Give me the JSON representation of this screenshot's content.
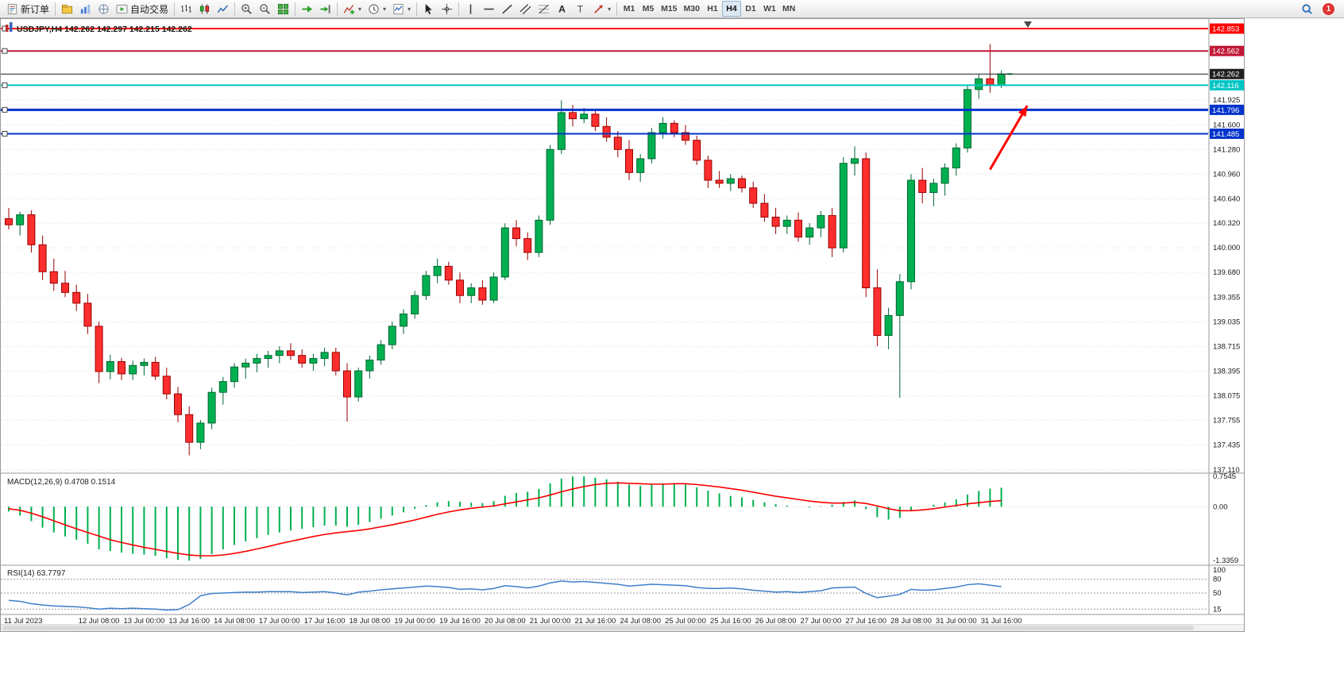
{
  "toolbar": {
    "groups": [
      {
        "items": [
          {
            "icon": "new-order",
            "label": "新订单",
            "name": "new-order-button"
          }
        ]
      },
      {
        "items": [
          {
            "icon": "profiles",
            "name": "profiles-button"
          },
          {
            "icon": "market-watch",
            "name": "market-watch-button"
          },
          {
            "icon": "navigator",
            "name": "navigator-button"
          },
          {
            "icon": "autotrading",
            "label": "自动交易",
            "name": "autotrading-button"
          }
        ]
      },
      {
        "items": [
          {
            "icon": "bar-chart",
            "name": "bar-chart-button"
          },
          {
            "icon": "candle-chart",
            "name": "candlestick-chart-button"
          },
          {
            "icon": "line-chart",
            "name": "line-chart-button"
          }
        ]
      },
      {
        "items": [
          {
            "icon": "zoom-in",
            "name": "zoom-in-button"
          },
          {
            "icon": "zoom-out",
            "name": "zoom-out-button"
          },
          {
            "icon": "tile-windows",
            "name": "tile-windows-button"
          }
        ]
      },
      {
        "items": [
          {
            "icon": "auto-scroll",
            "name": "auto-scroll-button"
          },
          {
            "icon": "chart-shift",
            "name": "chart-shift-button"
          }
        ]
      },
      {
        "items": [
          {
            "icon": "indicators",
            "caret": true,
            "name": "indicators-button"
          },
          {
            "icon": "periods",
            "caret": true,
            "name": "periods-button"
          },
          {
            "icon": "templates",
            "caret": true,
            "name": "templates-button"
          }
        ]
      },
      {
        "items": [
          {
            "icon": "cursor",
            "name": "cursor-button"
          },
          {
            "icon": "crosshair",
            "name": "crosshair-button"
          }
        ]
      },
      {
        "items": [
          {
            "icon": "vline",
            "name": "vertical-line-button"
          },
          {
            "icon": "hline",
            "name": "horizontal-line-button"
          },
          {
            "icon": "trendline",
            "name": "trendline-button"
          },
          {
            "icon": "channel",
            "name": "equidistant-channel-button"
          },
          {
            "icon": "fibo",
            "name": "fibonacci-button"
          },
          {
            "icon": "text",
            "name": "text-button"
          },
          {
            "icon": "label",
            "name": "text-label-button"
          },
          {
            "icon": "arrows",
            "caret": true,
            "name": "arrows-button"
          }
        ]
      }
    ],
    "timeframes": [
      "M1",
      "M5",
      "M15",
      "M30",
      "H1",
      "H4",
      "D1",
      "W1",
      "MN"
    ],
    "active_timeframe": "H4",
    "notification_count": "1"
  },
  "chart": {
    "title": "USDJPY,H4 142.262 142.297 142.215 142.262"
  },
  "chart_data": {
    "type": "candlestick",
    "symbol": "USDJPY",
    "timeframe": "H4",
    "ohlc_current": {
      "open": "142.262",
      "high": "142.297",
      "low": "142.215",
      "close": "142.262"
    },
    "price_axis": {
      "view_max": 142.874,
      "view_min": 137.089,
      "ticks": [
        141.925,
        141.6,
        141.28,
        140.96,
        140.64,
        140.32,
        140.0,
        139.68,
        139.355,
        139.035,
        138.715,
        138.395,
        138.075,
        137.755,
        137.435,
        137.11
      ],
      "grid_extra": [
        142.245,
        142.565,
        142.885
      ]
    },
    "levels": [
      {
        "price": 142.853,
        "label": "142.853",
        "color": "#FF0000",
        "width": 2,
        "kind": "object"
      },
      {
        "price": 142.562,
        "label": "142.562",
        "color": "#C21735",
        "width": 2,
        "kind": "object"
      },
      {
        "price": 142.262,
        "label": "142.262",
        "color": "#1F1F1F",
        "width": 1,
        "kind": "bid"
      },
      {
        "price": 142.116,
        "label": "142.116",
        "color": "#00C5C5",
        "width": 2,
        "kind": "object"
      },
      {
        "price": 141.796,
        "label": "141.796",
        "color": "#0033CC",
        "width": 3,
        "kind": "object"
      },
      {
        "price": 141.485,
        "label": "141.485",
        "color": "#0033CC",
        "width": 2,
        "kind": "object"
      }
    ],
    "candles": [
      [
        140.38,
        140.52,
        140.24,
        140.3
      ],
      [
        140.3,
        140.47,
        140.16,
        140.43
      ],
      [
        140.43,
        140.49,
        139.94,
        140.04
      ],
      [
        140.04,
        140.16,
        139.58,
        139.69
      ],
      [
        139.69,
        139.86,
        139.44,
        139.54
      ],
      [
        139.54,
        139.7,
        139.36,
        139.42
      ],
      [
        139.42,
        139.52,
        139.18,
        139.28
      ],
      [
        139.28,
        139.4,
        138.88,
        138.98
      ],
      [
        138.98,
        139.04,
        138.24,
        138.39
      ],
      [
        138.39,
        138.61,
        138.29,
        138.52
      ],
      [
        138.52,
        138.57,
        138.28,
        138.36
      ],
      [
        138.36,
        138.53,
        138.28,
        138.47
      ],
      [
        138.47,
        138.56,
        138.34,
        138.51
      ],
      [
        138.51,
        138.58,
        138.28,
        138.33
      ],
      [
        138.33,
        138.44,
        138.03,
        138.1
      ],
      [
        138.1,
        138.19,
        137.73,
        137.83
      ],
      [
        137.83,
        137.94,
        137.3,
        137.47
      ],
      [
        137.47,
        137.76,
        137.38,
        137.72
      ],
      [
        137.72,
        138.18,
        137.64,
        138.12
      ],
      [
        138.12,
        138.32,
        137.96,
        138.26
      ],
      [
        138.26,
        138.5,
        138.18,
        138.45
      ],
      [
        138.45,
        138.56,
        138.3,
        138.5
      ],
      [
        138.5,
        138.62,
        138.38,
        138.56
      ],
      [
        138.56,
        138.66,
        138.44,
        138.6
      ],
      [
        138.6,
        138.72,
        138.5,
        138.66
      ],
      [
        138.66,
        138.76,
        138.54,
        138.6
      ],
      [
        138.6,
        138.68,
        138.44,
        138.5
      ],
      [
        138.5,
        138.62,
        138.4,
        138.56
      ],
      [
        138.56,
        138.7,
        138.46,
        138.64
      ],
      [
        138.64,
        138.7,
        138.34,
        138.4
      ],
      [
        138.4,
        138.5,
        137.74,
        138.06
      ],
      [
        138.06,
        138.44,
        138.0,
        138.4
      ],
      [
        138.4,
        138.6,
        138.3,
        138.54
      ],
      [
        138.54,
        138.8,
        138.48,
        138.74
      ],
      [
        138.74,
        139.04,
        138.68,
        138.98
      ],
      [
        138.98,
        139.2,
        138.88,
        139.14
      ],
      [
        139.14,
        139.44,
        139.08,
        139.38
      ],
      [
        139.38,
        139.7,
        139.32,
        139.64
      ],
      [
        139.64,
        139.86,
        139.54,
        139.76
      ],
      [
        139.76,
        139.82,
        139.52,
        139.58
      ],
      [
        139.58,
        139.68,
        139.28,
        139.38
      ],
      [
        139.38,
        139.54,
        139.28,
        139.48
      ],
      [
        139.48,
        139.58,
        139.26,
        139.32
      ],
      [
        139.32,
        139.68,
        139.28,
        139.62
      ],
      [
        139.62,
        140.32,
        139.58,
        140.26
      ],
      [
        140.26,
        140.36,
        140.02,
        140.12
      ],
      [
        140.12,
        140.2,
        139.84,
        139.94
      ],
      [
        139.94,
        140.42,
        139.88,
        140.36
      ],
      [
        140.36,
        141.34,
        140.3,
        141.28
      ],
      [
        141.28,
        141.92,
        141.22,
        141.76
      ],
      [
        141.76,
        141.86,
        141.58,
        141.68
      ],
      [
        141.68,
        141.82,
        141.62,
        141.74
      ],
      [
        141.74,
        141.8,
        141.52,
        141.58
      ],
      [
        141.58,
        141.7,
        141.38,
        141.44
      ],
      [
        141.44,
        141.52,
        141.18,
        141.28
      ],
      [
        141.28,
        141.4,
        140.88,
        140.98
      ],
      [
        140.98,
        141.22,
        140.86,
        141.16
      ],
      [
        141.16,
        141.56,
        141.1,
        141.5
      ],
      [
        141.5,
        141.7,
        141.42,
        141.62
      ],
      [
        141.62,
        141.66,
        141.44,
        141.5
      ],
      [
        141.5,
        141.6,
        141.34,
        141.4
      ],
      [
        141.4,
        141.46,
        141.08,
        141.14
      ],
      [
        141.14,
        141.2,
        140.78,
        140.88
      ],
      [
        140.88,
        141.0,
        140.78,
        140.84
      ],
      [
        140.84,
        140.96,
        140.74,
        140.9
      ],
      [
        140.9,
        140.94,
        140.72,
        140.78
      ],
      [
        140.78,
        140.86,
        140.52,
        140.58
      ],
      [
        140.58,
        140.7,
        140.34,
        140.4
      ],
      [
        140.4,
        140.52,
        140.18,
        140.28
      ],
      [
        140.28,
        140.42,
        140.18,
        140.36
      ],
      [
        140.36,
        140.46,
        140.08,
        140.14
      ],
      [
        140.14,
        140.32,
        140.04,
        140.26
      ],
      [
        140.26,
        140.48,
        140.14,
        140.42
      ],
      [
        140.42,
        140.52,
        139.88,
        140.0
      ],
      [
        140.0,
        141.18,
        139.94,
        141.1
      ],
      [
        141.1,
        141.32,
        140.94,
        141.16
      ],
      [
        141.16,
        141.24,
        139.36,
        139.48
      ],
      [
        139.48,
        139.72,
        138.72,
        138.86
      ],
      [
        138.86,
        139.22,
        138.68,
        139.12
      ],
      [
        139.12,
        139.66,
        138.05,
        139.56
      ],
      [
        139.56,
        140.96,
        139.46,
        140.88
      ],
      [
        140.88,
        141.04,
        140.58,
        140.72
      ],
      [
        140.72,
        140.9,
        140.54,
        140.84
      ],
      [
        140.84,
        141.1,
        140.68,
        141.04
      ],
      [
        141.04,
        141.36,
        140.94,
        141.3
      ],
      [
        141.3,
        142.12,
        141.24,
        142.06
      ],
      [
        142.06,
        142.26,
        141.94,
        142.2
      ],
      [
        142.2,
        142.65,
        142.02,
        142.12
      ],
      [
        142.12,
        142.31,
        142.08,
        142.262
      ]
    ],
    "annotation_arrow": {
      "from_candle": 87,
      "from_price": 141.02,
      "to_candle": 90.3,
      "to_price": 141.85,
      "color": "#FF0000"
    },
    "time_axis": [
      {
        "t": "11 Jul 2023",
        "i": 0
      },
      {
        "t": "12 Jul 08:00",
        "i": 8
      },
      {
        "t": "13 Jul 00:00",
        "i": 12
      },
      {
        "t": "13 Jul 16:00",
        "i": 16
      },
      {
        "t": "14 Jul 08:00",
        "i": 20
      },
      {
        "t": "17 Jul 00:00",
        "i": 24
      },
      {
        "t": "17 Jul 16:00",
        "i": 28
      },
      {
        "t": "18 Jul 08:00",
        "i": 32
      },
      {
        "t": "19 Jul 00:00",
        "i": 36
      },
      {
        "t": "19 Jul 16:00",
        "i": 40
      },
      {
        "t": "20 Jul 08:00",
        "i": 44
      },
      {
        "t": "21 Jul 00:00",
        "i": 48
      },
      {
        "t": "21 Jul 16:00",
        "i": 52
      },
      {
        "t": "24 Jul 08:00",
        "i": 56
      },
      {
        "t": "25 Jul 00:00",
        "i": 60
      },
      {
        "t": "25 Jul 16:00",
        "i": 64
      },
      {
        "t": "26 Jul 08:00",
        "i": 68
      },
      {
        "t": "27 Jul 00:00",
        "i": 72
      },
      {
        "t": "27 Jul 16:00",
        "i": 76
      },
      {
        "t": "28 Jul 08:00",
        "i": 80
      },
      {
        "t": "31 Jul 00:00",
        "i": 84
      },
      {
        "t": "31 Jul 16:00",
        "i": 88
      }
    ],
    "macd": {
      "name": "MACD(12,26,9)",
      "main": "0.4708",
      "signal_value": "0.1514",
      "axis": {
        "max": 0.7545,
        "min": -1.3359,
        "ticks": [
          "0.7545",
          "0.00",
          "-1.3359"
        ]
      },
      "colors": {
        "histogram": "#00B050",
        "signal": "#FF0000"
      },
      "histogram": [
        -0.12,
        -0.22,
        -0.36,
        -0.52,
        -0.64,
        -0.74,
        -0.82,
        -0.92,
        -1.06,
        -1.1,
        -1.14,
        -1.17,
        -1.19,
        -1.22,
        -1.28,
        -1.32,
        -1.34,
        -1.3,
        -1.18,
        -1.06,
        -0.95,
        -0.86,
        -0.78,
        -0.7,
        -0.64,
        -0.59,
        -0.55,
        -0.51,
        -0.47,
        -0.47,
        -0.5,
        -0.45,
        -0.38,
        -0.3,
        -0.22,
        -0.14,
        -0.05,
        0.04,
        0.11,
        0.14,
        0.12,
        0.1,
        0.09,
        0.14,
        0.27,
        0.34,
        0.37,
        0.44,
        0.58,
        0.7,
        0.75,
        0.754,
        0.72,
        0.68,
        0.62,
        0.55,
        0.52,
        0.55,
        0.58,
        0.58,
        0.55,
        0.48,
        0.4,
        0.33,
        0.27,
        0.23,
        0.17,
        0.11,
        0.06,
        0.03,
        0.0,
        -0.02,
        0.01,
        0.05,
        0.12,
        0.16,
        -0.06,
        -0.26,
        -0.32,
        -0.28,
        -0.1,
        0.0,
        0.05,
        0.11,
        0.18,
        0.3,
        0.39,
        0.45,
        0.4708
      ],
      "signal": [
        -0.05,
        -0.09,
        -0.16,
        -0.25,
        -0.35,
        -0.45,
        -0.55,
        -0.64,
        -0.73,
        -0.82,
        -0.89,
        -0.95,
        -1.01,
        -1.06,
        -1.11,
        -1.16,
        -1.2,
        -1.22,
        -1.22,
        -1.2,
        -1.16,
        -1.11,
        -1.05,
        -0.99,
        -0.92,
        -0.86,
        -0.8,
        -0.74,
        -0.69,
        -0.65,
        -0.62,
        -0.59,
        -0.55,
        -0.5,
        -0.45,
        -0.39,
        -0.33,
        -0.26,
        -0.19,
        -0.13,
        -0.08,
        -0.04,
        -0.01,
        0.02,
        0.07,
        0.12,
        0.17,
        0.22,
        0.29,
        0.37,
        0.44,
        0.5,
        0.55,
        0.58,
        0.59,
        0.58,
        0.57,
        0.56,
        0.56,
        0.57,
        0.57,
        0.55,
        0.52,
        0.49,
        0.45,
        0.41,
        0.36,
        0.31,
        0.26,
        0.22,
        0.18,
        0.14,
        0.11,
        0.09,
        0.09,
        0.11,
        0.08,
        0.02,
        -0.05,
        -0.1,
        -0.1,
        -0.08,
        -0.05,
        -0.01,
        0.03,
        0.07,
        0.1,
        0.13,
        0.1514
      ]
    },
    "rsi": {
      "name": "RSI(14)",
      "value": "63.7797",
      "axis_ticks": [
        "100",
        "80",
        "50",
        "15"
      ],
      "levels": [
        80,
        50,
        15
      ],
      "color": "#3F7FCA",
      "values": [
        34,
        32,
        27,
        24,
        22,
        21,
        20,
        18,
        15,
        17,
        16,
        17,
        16,
        15,
        13,
        14,
        25,
        44,
        49,
        50,
        51,
        52,
        52,
        53,
        53,
        53,
        51,
        52,
        53,
        50,
        46,
        52,
        54,
        57,
        59,
        61,
        63,
        65,
        64,
        62,
        58,
        59,
        57,
        60,
        66,
        64,
        61,
        65,
        72,
        76,
        74,
        75,
        73,
        71,
        69,
        65,
        67,
        69,
        68,
        67,
        66,
        62,
        60,
        60,
        61,
        59,
        56,
        54,
        52,
        53,
        51,
        53,
        55,
        61,
        62,
        63,
        49,
        40,
        43,
        47,
        58,
        56,
        57,
        60,
        63,
        68,
        70,
        67,
        63.78
      ]
    },
    "style": {
      "up_fill": "#00B050",
      "up_stroke": "#006633",
      "down_fill": "#FF2E2E",
      "down_stroke": "#990000",
      "grid": "#DADADA",
      "close_marker": "#00B050"
    }
  }
}
